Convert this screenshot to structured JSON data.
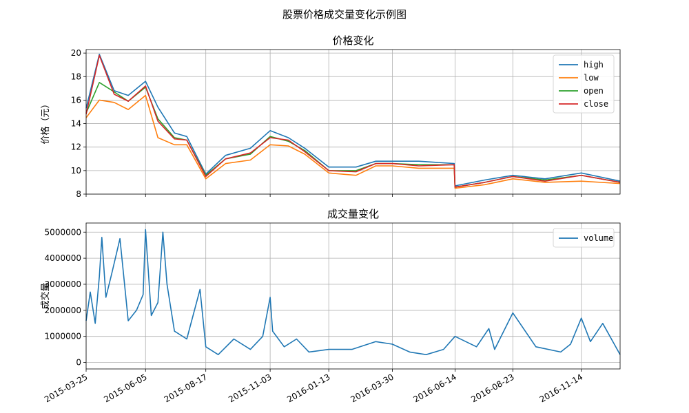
{
  "figure_title": "股票价格成交量变化示例图",
  "chart_data": [
    {
      "type": "line",
      "title": "价格变化",
      "xlabel": "",
      "ylabel": "价格（元）",
      "ylim": [
        8,
        20.3
      ],
      "yticks": [
        8,
        10,
        12,
        14,
        16,
        18,
        20
      ],
      "grid": true,
      "legend_position": "top-right",
      "x": [
        "2015-03-25",
        "2015-04-10",
        "2015-04-28",
        "2015-05-15",
        "2015-06-05",
        "2015-06-20",
        "2015-07-10",
        "2015-07-25",
        "2015-08-17",
        "2015-09-10",
        "2015-10-10",
        "2015-11-03",
        "2015-11-25",
        "2015-12-15",
        "2016-01-13",
        "2016-02-15",
        "2016-03-10",
        "2016-03-30",
        "2016-05-01",
        "2016-06-13",
        "2016-06-14",
        "2016-07-20",
        "2016-08-23",
        "2016-10-01",
        "2016-11-14",
        "2016-12-31"
      ],
      "series": [
        {
          "name": "high",
          "color": "#1f77b4",
          "values": [
            15.3,
            19.9,
            16.8,
            16.4,
            17.6,
            15.4,
            13.2,
            12.9,
            9.7,
            11.3,
            11.9,
            13.4,
            12.8,
            11.9,
            10.3,
            10.3,
            10.8,
            10.8,
            10.8,
            10.6,
            8.7,
            9.2,
            9.6,
            9.3,
            9.8,
            9.1
          ]
        },
        {
          "name": "low",
          "color": "#ff7f0e",
          "values": [
            14.5,
            16.0,
            15.8,
            15.2,
            16.4,
            12.8,
            12.2,
            12.2,
            9.3,
            10.6,
            10.9,
            12.2,
            12.1,
            11.4,
            9.8,
            9.6,
            10.4,
            10.4,
            10.2,
            10.2,
            8.5,
            8.8,
            9.3,
            9.0,
            9.1,
            8.9
          ]
        },
        {
          "name": "open",
          "color": "#2ca02c",
          "values": [
            14.9,
            17.5,
            16.7,
            15.9,
            17.1,
            14.4,
            12.8,
            12.6,
            9.6,
            11.0,
            11.4,
            12.9,
            12.5,
            11.7,
            10.0,
            10.0,
            10.6,
            10.6,
            10.5,
            10.5,
            8.6,
            9.0,
            9.5,
            9.2,
            9.6,
            9.0
          ]
        },
        {
          "name": "close",
          "color": "#d62728",
          "values": [
            14.8,
            19.8,
            16.5,
            15.9,
            17.2,
            14.2,
            12.7,
            12.6,
            9.5,
            11.0,
            11.5,
            12.8,
            12.6,
            11.6,
            10.0,
            9.9,
            10.6,
            10.6,
            10.4,
            10.5,
            8.6,
            9.0,
            9.5,
            9.1,
            9.6,
            9.0
          ]
        }
      ]
    },
    {
      "type": "line",
      "title": "成交量变化",
      "xlabel": "",
      "ylabel": "成交量",
      "ylim": [
        -250000,
        5350000
      ],
      "yticks": [
        0,
        1000000,
        2000000,
        3000000,
        4000000,
        5000000
      ],
      "grid": true,
      "legend_position": "top-right",
      "x_tick_labels": [
        "2015-03-25",
        "2015-06-05",
        "2015-08-17",
        "2015-11-03",
        "2016-01-13",
        "2016-03-30",
        "2016-06-14",
        "2016-08-23",
        "2016-11-14"
      ],
      "x": [
        "2015-03-25",
        "2015-03-30",
        "2015-04-05",
        "2015-04-10",
        "2015-04-13",
        "2015-04-18",
        "2015-04-25",
        "2015-05-05",
        "2015-05-15",
        "2015-05-25",
        "2015-06-02",
        "2015-06-05",
        "2015-06-12",
        "2015-06-20",
        "2015-06-26",
        "2015-07-01",
        "2015-07-10",
        "2015-07-25",
        "2015-08-10",
        "2015-08-17",
        "2015-09-01",
        "2015-09-20",
        "2015-10-10",
        "2015-10-25",
        "2015-11-03",
        "2015-11-06",
        "2015-11-20",
        "2015-12-05",
        "2015-12-20",
        "2016-01-13",
        "2016-02-10",
        "2016-03-10",
        "2016-03-30",
        "2016-04-20",
        "2016-05-10",
        "2016-05-31",
        "2016-06-14",
        "2016-07-10",
        "2016-07-25",
        "2016-08-01",
        "2016-08-23",
        "2016-09-20",
        "2016-10-20",
        "2016-11-01",
        "2016-11-14",
        "2016-11-25",
        "2016-12-10",
        "2016-12-31"
      ],
      "series": [
        {
          "name": "volume",
          "color": "#1f77b4",
          "values": [
            1600000,
            2700000,
            1500000,
            3300000,
            4800000,
            2500000,
            3400000,
            4750000,
            1600000,
            2000000,
            2600000,
            5100000,
            1800000,
            2300000,
            5000000,
            3000000,
            1200000,
            900000,
            2800000,
            600000,
            300000,
            900000,
            500000,
            1000000,
            2500000,
            1200000,
            600000,
            900000,
            400000,
            500000,
            500000,
            800000,
            700000,
            400000,
            300000,
            500000,
            1000000,
            600000,
            1300000,
            500000,
            1900000,
            600000,
            400000,
            700000,
            1700000,
            800000,
            1500000,
            300000
          ]
        }
      ]
    }
  ]
}
